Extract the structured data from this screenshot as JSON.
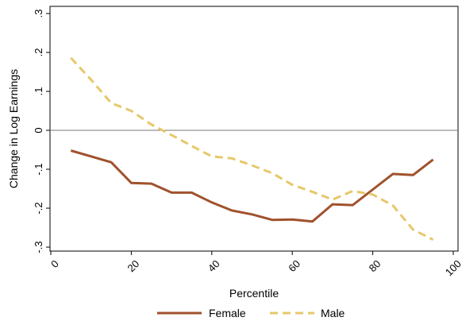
{
  "chart_data": {
    "type": "line",
    "title": "",
    "xlabel": "Percentile",
    "ylabel": "Change in Log Earnings",
    "xlim": [
      0,
      100
    ],
    "ylim": [
      -0.3,
      0.3
    ],
    "xticks": [
      {
        "value": 0,
        "label": "0"
      },
      {
        "value": 20,
        "label": "20"
      },
      {
        "value": 40,
        "label": "40"
      },
      {
        "value": 60,
        "label": "60"
      },
      {
        "value": 80,
        "label": "80"
      },
      {
        "value": 100,
        "label": "100"
      }
    ],
    "yticks": [
      {
        "value": 0.3,
        "label": ".3"
      },
      {
        "value": 0.2,
        "label": ".2"
      },
      {
        "value": 0.1,
        "label": ".1"
      },
      {
        "value": 0,
        "label": "0"
      },
      {
        "value": -0.1,
        "label": "-.1"
      },
      {
        "value": -0.2,
        "label": "-.2"
      },
      {
        "value": -0.3,
        "label": "-.3"
      }
    ],
    "reference_line_y": 0,
    "grid": false,
    "legend_position": "bottom",
    "x": [
      5,
      10,
      15,
      20,
      25,
      30,
      35,
      40,
      45,
      50,
      55,
      60,
      65,
      70,
      75,
      80,
      85,
      90,
      95
    ],
    "series": [
      {
        "name": "Female",
        "color": "#a0522d",
        "dash": "solid",
        "values": [
          -0.052,
          -0.067,
          -0.082,
          -0.135,
          -0.137,
          -0.16,
          -0.16,
          -0.185,
          -0.206,
          -0.216,
          -0.23,
          -0.229,
          -0.234,
          -0.19,
          -0.192,
          -0.152,
          -0.112,
          -0.115,
          -0.075
        ]
      },
      {
        "name": "Male",
        "color": "#e6c86b",
        "dash": "dashed",
        "values": [
          0.186,
          0.13,
          0.07,
          0.05,
          0.015,
          -0.012,
          -0.04,
          -0.067,
          -0.072,
          -0.09,
          -0.11,
          -0.14,
          -0.158,
          -0.178,
          -0.156,
          -0.165,
          -0.193,
          -0.255,
          -0.281
        ]
      }
    ]
  }
}
